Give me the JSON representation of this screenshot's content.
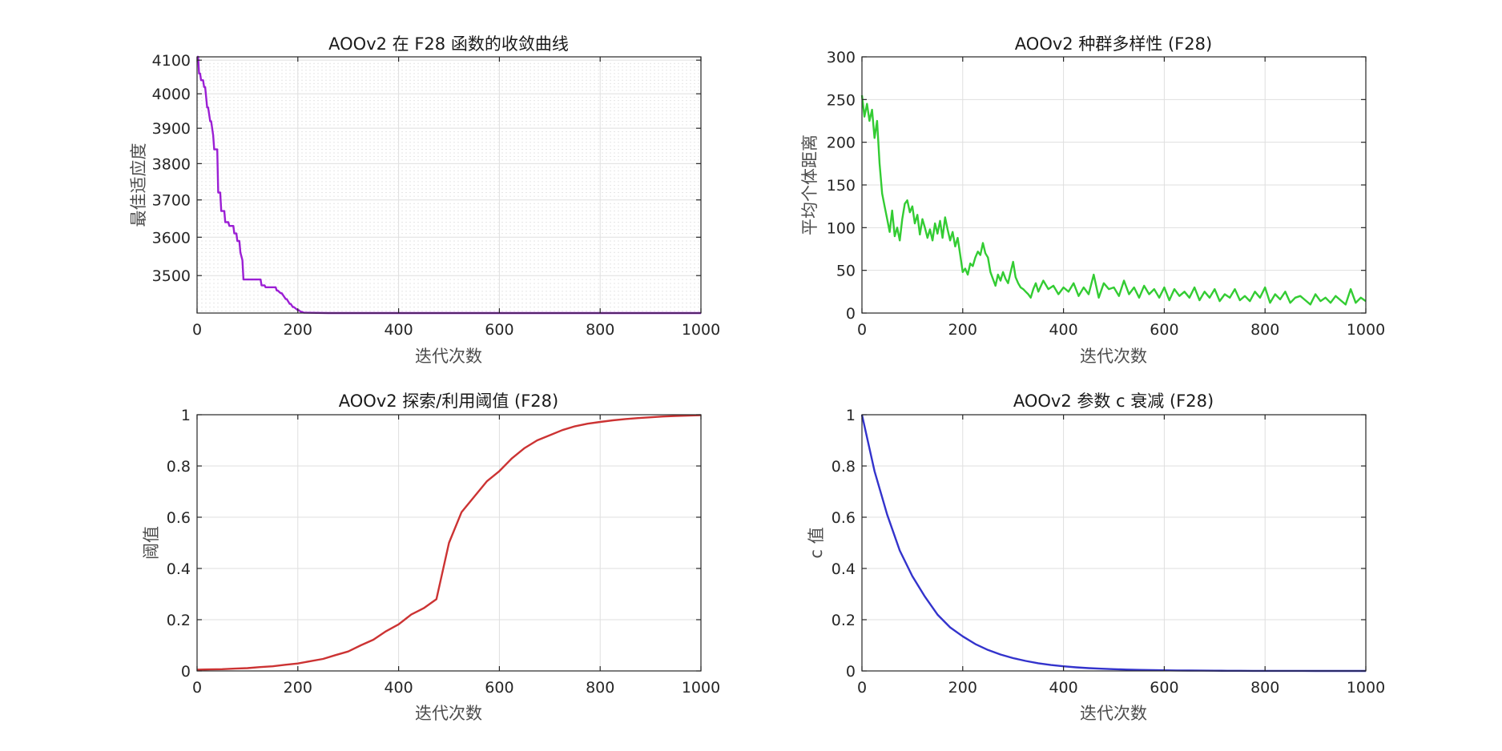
{
  "chart_data": [
    {
      "type": "line",
      "title": "AOOv2 在 F28 函数的收敛曲线",
      "xlabel": "迭代次数",
      "ylabel": "最佳适应度",
      "xlim": [
        0,
        1000
      ],
      "ylim": [
        3405,
        4110
      ],
      "xticks": [
        0,
        200,
        400,
        600,
        800,
        1000
      ],
      "yticks": [
        3500,
        3600,
        3700,
        3800,
        3900,
        4000,
        4100
      ],
      "ylog": true,
      "grid": true,
      "minor_grid": true,
      "color": "#9b1fd4",
      "series": [
        {
          "x": [
            0,
            2,
            4,
            6,
            8,
            12,
            14,
            16,
            20,
            22,
            26,
            28,
            32,
            34,
            40,
            42,
            46,
            48,
            54,
            56,
            62,
            64,
            72,
            74,
            78,
            80,
            84,
            86,
            90,
            92,
            96,
            98,
            100,
            126,
            128,
            134,
            136,
            156,
            158,
            160,
            166,
            168,
            176,
            178,
            184,
            186,
            190,
            192,
            200,
            202,
            206,
            208,
            212,
            260,
            1000
          ],
          "y": [
            4110,
            4110,
            4060,
            4060,
            4040,
            4040,
            4020,
            4020,
            3960,
            3960,
            3920,
            3920,
            3880,
            3840,
            3840,
            3720,
            3720,
            3670,
            3670,
            3640,
            3640,
            3630,
            3630,
            3610,
            3610,
            3590,
            3590,
            3560,
            3540,
            3490,
            3490,
            3490,
            3490,
            3490,
            3475,
            3475,
            3470,
            3470,
            3462,
            3462,
            3455,
            3455,
            3440,
            3440,
            3428,
            3428,
            3420,
            3420,
            3412,
            3412,
            3408,
            3408,
            3406,
            3405,
            3405
          ]
        }
      ]
    },
    {
      "type": "line",
      "title": "AOOv2 种群多样性 (F28)",
      "xlabel": "迭代次数",
      "ylabel": "平均个体距离",
      "xlim": [
        0,
        1000
      ],
      "ylim": [
        0,
        300
      ],
      "xticks": [
        0,
        200,
        400,
        600,
        800,
        1000
      ],
      "yticks": [
        0,
        50,
        100,
        150,
        200,
        250,
        300
      ],
      "grid": true,
      "color": "#33cc33",
      "series": [
        {
          "x": [
            0,
            5,
            10,
            15,
            20,
            25,
            30,
            35,
            40,
            45,
            50,
            55,
            60,
            65,
            70,
            75,
            80,
            85,
            90,
            95,
            100,
            105,
            110,
            115,
            120,
            125,
            130,
            135,
            140,
            145,
            150,
            155,
            160,
            165,
            170,
            175,
            180,
            185,
            190,
            195,
            200,
            205,
            210,
            215,
            220,
            225,
            230,
            235,
            240,
            245,
            250,
            255,
            260,
            265,
            270,
            275,
            280,
            285,
            290,
            295,
            300,
            305,
            310,
            315,
            320,
            325,
            330,
            335,
            340,
            345,
            350,
            360,
            370,
            380,
            390,
            400,
            410,
            420,
            430,
            440,
            450,
            460,
            470,
            480,
            490,
            500,
            510,
            520,
            530,
            540,
            550,
            560,
            570,
            580,
            590,
            600,
            610,
            620,
            630,
            640,
            650,
            660,
            670,
            680,
            690,
            700,
            710,
            720,
            730,
            740,
            750,
            760,
            770,
            780,
            790,
            800,
            810,
            820,
            830,
            840,
            850,
            860,
            870,
            880,
            890,
            900,
            910,
            920,
            930,
            940,
            950,
            960,
            970,
            980,
            990,
            1000
          ],
          "y": [
            255,
            230,
            245,
            225,
            238,
            205,
            225,
            175,
            140,
            125,
            110,
            95,
            120,
            90,
            100,
            85,
            110,
            128,
            132,
            118,
            125,
            105,
            115,
            92,
            110,
            100,
            88,
            98,
            85,
            105,
            93,
            108,
            88,
            112,
            98,
            85,
            95,
            78,
            88,
            68,
            48,
            52,
            45,
            58,
            55,
            65,
            72,
            68,
            82,
            70,
            65,
            48,
            40,
            32,
            45,
            38,
            48,
            40,
            35,
            48,
            60,
            42,
            35,
            30,
            28,
            25,
            22,
            18,
            28,
            35,
            25,
            38,
            28,
            32,
            22,
            30,
            25,
            35,
            20,
            30,
            22,
            45,
            18,
            35,
            28,
            30,
            20,
            38,
            22,
            30,
            18,
            32,
            22,
            28,
            18,
            30,
            15,
            28,
            20,
            25,
            18,
            30,
            15,
            25,
            18,
            28,
            14,
            22,
            18,
            28,
            15,
            20,
            14,
            25,
            18,
            30,
            12,
            22,
            16,
            25,
            12,
            18,
            20,
            15,
            10,
            22,
            14,
            18,
            12,
            20,
            15,
            10,
            28,
            12,
            18,
            14
          ]
        }
      ]
    },
    {
      "type": "line",
      "title": "AOOv2 探索/利用阈值 (F28)",
      "xlabel": "迭代次数",
      "ylabel": "阈值",
      "xlim": [
        0,
        1000
      ],
      "ylim": [
        0,
        1
      ],
      "xticks": [
        0,
        200,
        400,
        600,
        800,
        1000
      ],
      "yticks": [
        0,
        0.2,
        0.4,
        0.6,
        0.8,
        1
      ],
      "grid": true,
      "color": "#cc3333",
      "series": [
        {
          "x": [
            0,
            25,
            50,
            75,
            100,
            125,
            150,
            175,
            200,
            225,
            250,
            275,
            300,
            325,
            350,
            375,
            400,
            425,
            450,
            475,
            500,
            525,
            550,
            575,
            600,
            625,
            650,
            675,
            700,
            725,
            750,
            775,
            800,
            825,
            850,
            875,
            900,
            925,
            950,
            975,
            1000
          ],
          "y": [
            0.005,
            0.006,
            0.007,
            0.009,
            0.011,
            0.015,
            0.018,
            0.024,
            0.029,
            0.038,
            0.047,
            0.062,
            0.076,
            0.1,
            0.122,
            0.155,
            0.182,
            0.22,
            0.245,
            0.28,
            0.5,
            0.62,
            0.68,
            0.74,
            0.78,
            0.83,
            0.87,
            0.9,
            0.92,
            0.94,
            0.955,
            0.965,
            0.972,
            0.978,
            0.983,
            0.987,
            0.99,
            0.993,
            0.995,
            0.997,
            0.998
          ]
        }
      ]
    },
    {
      "type": "line",
      "title": "AOOv2 参数 c 衰减 (F28)",
      "xlabel": "迭代次数",
      "ylabel": "c 值",
      "xlim": [
        0,
        1000
      ],
      "ylim": [
        0,
        1
      ],
      "xticks": [
        0,
        200,
        400,
        600,
        800,
        1000
      ],
      "yticks": [
        0,
        0.2,
        0.4,
        0.6,
        0.8,
        1
      ],
      "grid": true,
      "color": "#3333cc",
      "series": [
        {
          "x": [
            0,
            25,
            50,
            75,
            100,
            125,
            150,
            175,
            200,
            225,
            250,
            275,
            300,
            325,
            350,
            375,
            400,
            425,
            450,
            475,
            500,
            525,
            550,
            575,
            600,
            625,
            650,
            675,
            700,
            725,
            750,
            775,
            800,
            825,
            850,
            875,
            900,
            925,
            950,
            975,
            1000
          ],
          "y": [
            1,
            0.78,
            0.61,
            0.47,
            0.37,
            0.29,
            0.22,
            0.17,
            0.135,
            0.105,
            0.082,
            0.064,
            0.05,
            0.039,
            0.03,
            0.023,
            0.018,
            0.014,
            0.011,
            0.0087,
            0.0068,
            0.0053,
            0.0041,
            0.0032,
            0.0025,
            0.0019,
            0.0015,
            0.0012,
            0.0009,
            0.0007,
            0.00055,
            0.00043,
            0.00034,
            0.00026,
            0.0002,
            0.00016,
            0.00012,
            0.0001,
            8e-05,
            6e-05,
            5e-05
          ]
        }
      ]
    }
  ]
}
